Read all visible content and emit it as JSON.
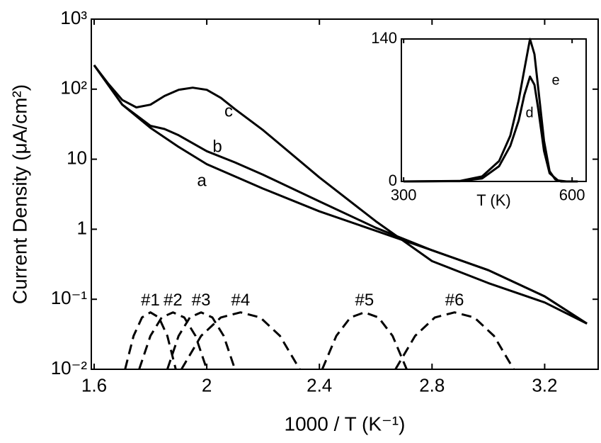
{
  "chart_data": [
    {
      "type": "line",
      "log_y": true,
      "x_label": "1000 / T  (K⁻¹)",
      "y_label": "Current Density (μA/cm²)",
      "xlim": [
        1.59,
        3.39
      ],
      "xticks": [
        1.6,
        2,
        2.4,
        2.8,
        3.2
      ],
      "ylim": [
        0.01,
        1000
      ],
      "yticks": [
        {
          "value": 0.01,
          "label": "10⁻²"
        },
        {
          "value": 0.1,
          "label": "10⁻¹"
        },
        1,
        10,
        {
          "value": 100,
          "label": "10²"
        },
        {
          "value": 1000,
          "label": "10³"
        }
      ],
      "series": [
        {
          "name": "a",
          "color": "#000000",
          "dashed": false,
          "x": [
            1.6,
            1.7,
            1.8,
            1.9,
            2.0,
            2.2,
            2.4,
            2.6,
            2.8,
            3.0,
            3.2,
            3.35
          ],
          "values": [
            220,
            60,
            28,
            15,
            8.5,
            3.8,
            1.8,
            0.95,
            0.5,
            0.26,
            0.11,
            0.045
          ]
        },
        {
          "name": "b",
          "color": "#000000",
          "dashed": false,
          "x": [
            1.6,
            1.7,
            1.8,
            1.85,
            1.9,
            2.0,
            2.1,
            2.2,
            2.4,
            2.6,
            2.8,
            3.0,
            3.2,
            3.35
          ],
          "values": [
            220,
            60,
            30,
            27,
            22,
            13,
            9,
            6,
            2.5,
            1.05,
            0.5,
            0.26,
            0.11,
            0.045
          ]
        },
        {
          "name": "c",
          "color": "#000000",
          "dashed": false,
          "x": [
            1.6,
            1.65,
            1.7,
            1.75,
            1.8,
            1.85,
            1.9,
            1.95,
            2.0,
            2.05,
            2.1,
            2.2,
            2.4,
            2.6,
            2.8,
            3.0,
            3.2,
            3.35
          ],
          "values": [
            220,
            120,
            70,
            55,
            60,
            80,
            98,
            105,
            98,
            75,
            52,
            26,
            5.5,
            1.3,
            0.35,
            0.17,
            0.09,
            0.045
          ]
        },
        {
          "name": "#1",
          "color": "#000000",
          "dashed": true,
          "x": [
            1.71,
            1.74,
            1.77,
            1.8,
            1.83,
            1.86,
            1.89
          ],
          "values": [
            0.01,
            0.03,
            0.055,
            0.065,
            0.055,
            0.03,
            0.01
          ]
        },
        {
          "name": "#2",
          "color": "#000000",
          "dashed": true,
          "x": [
            1.76,
            1.8,
            1.84,
            1.88,
            1.92,
            1.96,
            2.0
          ],
          "values": [
            0.01,
            0.03,
            0.055,
            0.065,
            0.055,
            0.03,
            0.01
          ]
        },
        {
          "name": "#3",
          "color": "#000000",
          "dashed": true,
          "x": [
            1.86,
            1.9,
            1.94,
            1.98,
            2.02,
            2.06,
            2.1
          ],
          "values": [
            0.01,
            0.03,
            0.055,
            0.065,
            0.055,
            0.03,
            0.01
          ]
        },
        {
          "name": "#4",
          "color": "#000000",
          "dashed": true,
          "x": [
            1.91,
            1.98,
            2.05,
            2.12,
            2.19,
            2.26,
            2.33
          ],
          "values": [
            0.01,
            0.03,
            0.055,
            0.065,
            0.055,
            0.03,
            0.01
          ]
        },
        {
          "name": "#5",
          "color": "#000000",
          "dashed": true,
          "x": [
            2.41,
            2.46,
            2.51,
            2.56,
            2.61,
            2.66,
            2.71
          ],
          "values": [
            0.01,
            0.03,
            0.055,
            0.065,
            0.055,
            0.03,
            0.01
          ]
        },
        {
          "name": "#6",
          "color": "#000000",
          "dashed": true,
          "x": [
            2.67,
            2.74,
            2.81,
            2.88,
            2.95,
            3.02,
            3.09
          ],
          "values": [
            0.01,
            0.03,
            0.055,
            0.065,
            0.055,
            0.03,
            0.01
          ]
        }
      ]
    },
    {
      "type": "line",
      "log_y": false,
      "x_label": "T (K)",
      "xlim": [
        296,
        625
      ],
      "xticks": [
        300,
        600
      ],
      "ylim": [
        0,
        140
      ],
      "yticks": [
        0,
        140
      ],
      "series": [
        {
          "name": "d",
          "color": "#000000",
          "dashed": false,
          "x": [
            300,
            400,
            440,
            470,
            490,
            505,
            515,
            525,
            533,
            540,
            550,
            560,
            575,
            590,
            610
          ],
          "values": [
            0,
            0.3,
            3,
            15,
            35,
            60,
            85,
            103,
            95,
            70,
            30,
            8,
            1,
            0,
            0
          ]
        },
        {
          "name": "e",
          "color": "#000000",
          "dashed": false,
          "x": [
            300,
            400,
            440,
            470,
            490,
            505,
            515,
            525,
            533,
            540,
            550,
            560,
            570,
            580,
            610
          ],
          "values": [
            0,
            0.5,
            5,
            20,
            45,
            80,
            110,
            140,
            125,
            90,
            40,
            10,
            2,
            0,
            0
          ]
        }
      ]
    }
  ]
}
